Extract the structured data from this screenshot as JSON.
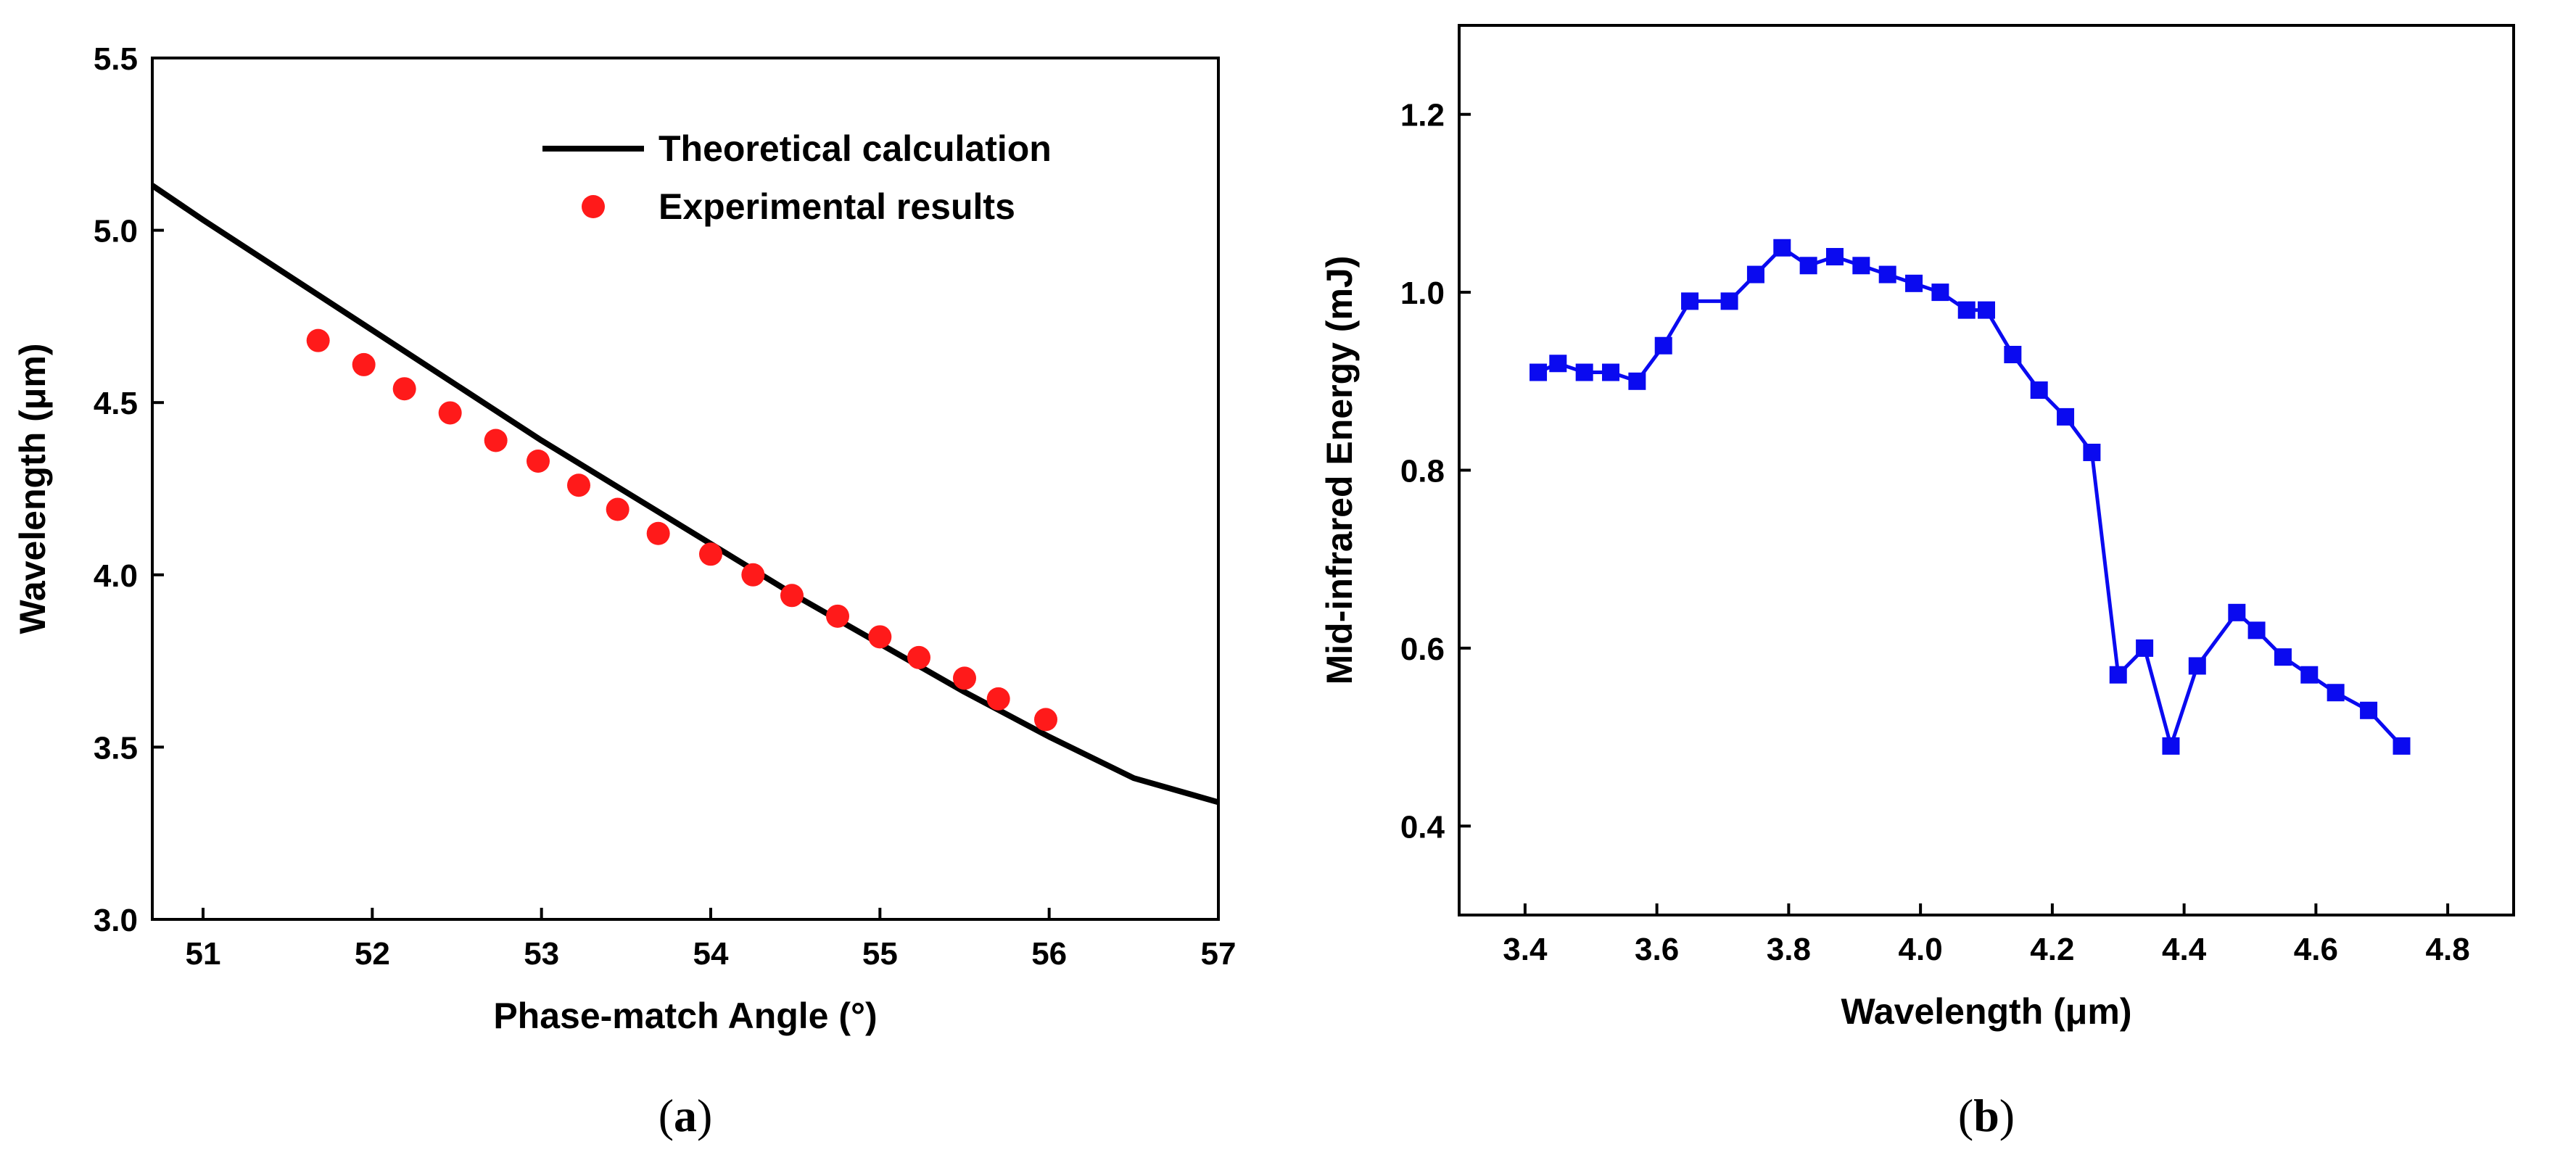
{
  "chart_data": [
    {
      "type": "line+scatter",
      "panel_label": "a",
      "title": "",
      "xlabel": "Phase-match Angle (°)",
      "ylabel": "Wavelength (μm)",
      "xlim": [
        50.7,
        57
      ],
      "ylim": [
        3.0,
        5.5
      ],
      "xticks": [
        51,
        52,
        53,
        54,
        55,
        56,
        57
      ],
      "yticks": [
        3.0,
        3.5,
        4.0,
        4.5,
        5.0,
        5.5
      ],
      "grid": false,
      "legend_position": "top-right",
      "series": [
        {
          "name": "Theoretical calculation",
          "kind": "line",
          "color": "#000000",
          "x": [
            50.7,
            51.0,
            51.5,
            52.0,
            52.5,
            53.0,
            53.5,
            54.0,
            54.5,
            55.0,
            55.5,
            56.0,
            56.5,
            57.0
          ],
          "y": [
            5.13,
            5.03,
            4.87,
            4.71,
            4.55,
            4.39,
            4.24,
            4.09,
            3.94,
            3.8,
            3.66,
            3.53,
            3.41,
            3.34
          ]
        },
        {
          "name": "Experimental results",
          "kind": "scatter",
          "color": "#ff1a1a",
          "x": [
            51.68,
            51.95,
            52.19,
            52.46,
            52.73,
            52.98,
            53.22,
            53.45,
            53.69,
            54.0,
            54.25,
            54.48,
            54.75,
            55.0,
            55.23,
            55.5,
            55.7,
            55.98
          ],
          "y": [
            4.68,
            4.61,
            4.54,
            4.47,
            4.39,
            4.33,
            4.26,
            4.19,
            4.12,
            4.06,
            4.0,
            3.94,
            3.88,
            3.82,
            3.76,
            3.7,
            3.64,
            3.58
          ]
        }
      ]
    },
    {
      "type": "line",
      "panel_label": "b",
      "title": "",
      "xlabel": "Wavelength (μm)",
      "ylabel": "Mid-infrared Energy (mJ)",
      "xlim": [
        3.3,
        4.9
      ],
      "ylim": [
        0.3,
        1.3
      ],
      "xticks": [
        3.4,
        3.6,
        3.8,
        4.0,
        4.2,
        4.4,
        4.6,
        4.8
      ],
      "yticks": [
        0.4,
        0.6,
        0.8,
        1.0,
        1.2
      ],
      "grid": false,
      "marker": "square",
      "series": [
        {
          "name": "Mid-infrared Energy",
          "color": "#0a0af0",
          "x": [
            3.42,
            3.45,
            3.49,
            3.53,
            3.57,
            3.61,
            3.65,
            3.71,
            3.75,
            3.79,
            3.83,
            3.87,
            3.91,
            3.95,
            3.99,
            4.03,
            4.07,
            4.1,
            4.14,
            4.18,
            4.22,
            4.26,
            4.3,
            4.34,
            4.38,
            4.42,
            4.48,
            4.51,
            4.55,
            4.59,
            4.63,
            4.68,
            4.73
          ],
          "y": [
            0.91,
            0.92,
            0.91,
            0.91,
            0.9,
            0.94,
            0.99,
            0.99,
            1.02,
            1.05,
            1.03,
            1.04,
            1.03,
            1.02,
            1.01,
            1.0,
            0.98,
            0.98,
            0.93,
            0.89,
            0.86,
            0.82,
            0.57,
            0.6,
            0.49,
            0.58,
            0.64,
            0.62,
            0.59,
            0.57,
            0.55,
            0.53,
            0.49
          ]
        }
      ]
    }
  ]
}
